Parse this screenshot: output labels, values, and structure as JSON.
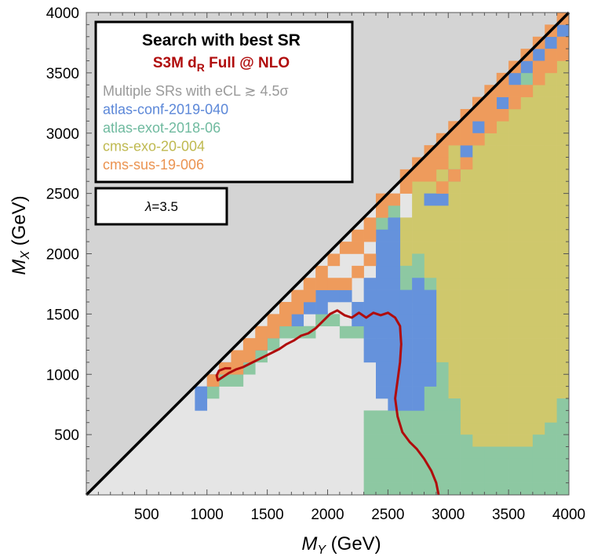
{
  "chart_data": {
    "type": "heatmap",
    "title": "Search with best SR",
    "subtitle": "S3M d_R Full @ NLO",
    "subtitle_parts": {
      "main": "S3M d",
      "sub": "R",
      "rest": " Full @ NLO"
    },
    "param_box": {
      "symbol": "λ",
      "text": "=3.5"
    },
    "xlabel": {
      "symbol": "M",
      "sub": "Y",
      "unit": " (GeV)"
    },
    "ylabel": {
      "symbol": "M",
      "sub": "X",
      "unit": " (GeV)"
    },
    "xlim": [
      0,
      4000
    ],
    "ylim": [
      0,
      4000
    ],
    "xticks": [
      "500",
      "1000",
      "1500",
      "2000",
      "2500",
      "3000",
      "3500",
      "4000"
    ],
    "yticks": [
      "500",
      "1000",
      "1500",
      "2000",
      "2500",
      "3000",
      "3500",
      "4000"
    ],
    "cell_size_gev": 100,
    "colors": {
      "kinematically_excluded": "#d4d4d4",
      "no_sensitivity": "#e5e5e5",
      "multiple": "#9f9f9f",
      "atlas_conf_2019_040": "#6592dc",
      "atlas_exot_2018_06": "#8dc8a2",
      "cms_exo_20_004": "#cfc86c",
      "cms_sus_19_006": "#ee9b5c",
      "contour": "#b00c0c"
    },
    "legend": [
      {
        "label": "Multiple SRs with eCL ≳ 4.5σ",
        "color": "#9a9a9a"
      },
      {
        "label": "atlas-conf-2019-040",
        "color": "#5b87d8"
      },
      {
        "label": "atlas-exot-2018-06",
        "color": "#6fba9f"
      },
      {
        "label": "cms-exo-20-004",
        "color": "#bfb950"
      },
      {
        "label": "cms-sus-19-006",
        "color": "#eb9350"
      }
    ],
    "contour_curve": {
      "label": "S3M d_R Full @ NLO",
      "x": [
        2920,
        2900,
        2860,
        2800,
        2740,
        2680,
        2620,
        2580,
        2560,
        2580,
        2600,
        2610,
        2600,
        2560,
        2500,
        2440,
        2380,
        2320,
        2260,
        2200,
        2140,
        2080,
        2020,
        1960,
        1900,
        1840,
        1780,
        1720,
        1660,
        1600,
        1540,
        1480,
        1420,
        1360,
        1300,
        1240,
        1180,
        1120,
        1090,
        1080,
        1100,
        1150,
        1200
      ],
      "y": [
        0,
        100,
        200,
        300,
        380,
        440,
        520,
        650,
        800,
        950,
        1100,
        1250,
        1400,
        1470,
        1510,
        1490,
        1510,
        1470,
        1510,
        1470,
        1490,
        1530,
        1500,
        1440,
        1380,
        1340,
        1320,
        1280,
        1250,
        1210,
        1180,
        1150,
        1120,
        1090,
        1060,
        1040,
        1010,
        970,
        950,
        990,
        1030,
        1050,
        1050
      ]
    },
    "cells": {
      "blue": [
        [
          900,
          700
        ],
        [
          900,
          800
        ],
        [
          1000,
          900
        ],
        [
          1100,
          1000
        ],
        [
          1200,
          1000
        ],
        [
          1300,
          1100
        ],
        [
          1400,
          1200
        ],
        [
          1500,
          1300
        ],
        [
          1600,
          1400
        ],
        [
          1700,
          1400
        ],
        [
          1800,
          1500
        ],
        [
          1900,
          1500
        ],
        [
          1900,
          1600
        ],
        [
          2000,
          1600
        ],
        [
          2100,
          1600
        ],
        [
          2200,
          1400
        ],
        [
          2200,
          1500
        ],
        [
          2300,
          1300
        ],
        [
          2300,
          1400
        ],
        [
          2300,
          1500
        ],
        [
          2300,
          1600
        ],
        [
          2300,
          1700
        ],
        [
          2400,
          1300
        ],
        [
          2400,
          1400
        ],
        [
          2400,
          1500
        ],
        [
          2400,
          1600
        ],
        [
          2400,
          1700
        ],
        [
          2400,
          1800
        ],
        [
          2400,
          1900
        ],
        [
          2400,
          2000
        ],
        [
          2400,
          2100
        ],
        [
          2500,
          1200
        ],
        [
          2500,
          1300
        ],
        [
          2500,
          1400
        ],
        [
          2500,
          1500
        ],
        [
          2500,
          1600
        ],
        [
          2500,
          1700
        ],
        [
          2500,
          1800
        ],
        [
          2500,
          1900
        ],
        [
          2500,
          2000
        ],
        [
          2500,
          2100
        ],
        [
          2500,
          2200
        ],
        [
          2600,
          1100
        ],
        [
          2600,
          1200
        ],
        [
          2600,
          1300
        ],
        [
          2600,
          1400
        ],
        [
          2600,
          1500
        ],
        [
          2600,
          1600
        ],
        [
          2700,
          1000
        ],
        [
          2700,
          1100
        ],
        [
          2700,
          1200
        ],
        [
          2700,
          1300
        ],
        [
          2700,
          1400
        ],
        [
          2700,
          1500
        ],
        [
          2700,
          1600
        ],
        [
          2800,
          1000
        ],
        [
          2800,
          1100
        ],
        [
          2800,
          1200
        ],
        [
          2800,
          1300
        ],
        [
          2800,
          1400
        ],
        [
          2800,
          1500
        ],
        [
          2800,
          1600
        ],
        [
          2800,
          2400
        ],
        [
          2900,
          2400
        ],
        [
          3000,
          2600
        ],
        [
          3100,
          2800
        ],
        [
          3200,
          3000
        ],
        [
          3300,
          3100
        ],
        [
          3400,
          3200
        ],
        [
          3500,
          3400
        ],
        [
          3600,
          3500
        ],
        [
          3700,
          3600
        ],
        [
          3800,
          3700
        ],
        [
          3900,
          3800
        ],
        [
          2300,
          1200
        ],
        [
          2300,
          1100
        ],
        [
          2400,
          1100
        ],
        [
          2400,
          1200
        ],
        [
          2500,
          1100
        ],
        [
          2600,
          1000
        ],
        [
          2600,
          900
        ],
        [
          2700,
          900
        ],
        [
          2400,
          1000
        ],
        [
          2500,
          1000
        ],
        [
          2500,
          900
        ],
        [
          2600,
          800
        ],
        [
          2700,
          800
        ],
        [
          2400,
          900
        ],
        [
          2400,
          800
        ],
        [
          2500,
          800
        ],
        [
          2500,
          700
        ],
        [
          2600,
          700
        ],
        [
          2700,
          700
        ],
        [
          2800,
          900
        ],
        [
          2700,
          1700
        ]
      ],
      "green": [
        [
          1000,
          800
        ],
        [
          1100,
          900
        ],
        [
          1200,
          900
        ],
        [
          1300,
          1000
        ],
        [
          1400,
          1100
        ],
        [
          1500,
          1200
        ],
        [
          1600,
          1300
        ],
        [
          1700,
          1300
        ],
        [
          1800,
          1300
        ],
        [
          1900,
          1400
        ],
        [
          2000,
          1400
        ],
        [
          2100,
          1300
        ],
        [
          2200,
          1300
        ],
        [
          2400,
          2200
        ],
        [
          2500,
          2300
        ],
        [
          2600,
          1700
        ],
        [
          2600,
          1800
        ],
        [
          2700,
          1800
        ],
        [
          2700,
          1900
        ],
        [
          2800,
          1700
        ],
        [
          3600,
          3400
        ],
        [
          3700,
          3500
        ],
        [
          2900,
          1000
        ],
        [
          2900,
          900
        ],
        [
          2900,
          800
        ],
        [
          2900,
          700
        ],
        [
          2900,
          600
        ],
        [
          2900,
          500
        ],
        [
          2900,
          400
        ],
        [
          2900,
          300
        ],
        [
          2900,
          200
        ],
        [
          2900,
          100
        ],
        [
          2900,
          0
        ],
        [
          3000,
          700
        ],
        [
          3000,
          600
        ],
        [
          3000,
          500
        ],
        [
          3000,
          400
        ],
        [
          3000,
          300
        ],
        [
          3000,
          200
        ],
        [
          3000,
          100
        ],
        [
          3000,
          0
        ],
        [
          3100,
          400
        ],
        [
          3100,
          300
        ],
        [
          3100,
          200
        ],
        [
          3100,
          100
        ],
        [
          3100,
          0
        ],
        [
          3200,
          300
        ],
        [
          3200,
          200
        ],
        [
          3200,
          100
        ],
        [
          3200,
          0
        ],
        [
          3300,
          300
        ],
        [
          3300,
          200
        ],
        [
          3300,
          100
        ],
        [
          3300,
          0
        ],
        [
          3400,
          300
        ],
        [
          3400,
          200
        ],
        [
          3400,
          100
        ],
        [
          3400,
          0
        ],
        [
          3500,
          300
        ],
        [
          3500,
          200
        ],
        [
          3500,
          100
        ],
        [
          3500,
          0
        ],
        [
          3600,
          300
        ],
        [
          3600,
          200
        ],
        [
          3600,
          100
        ],
        [
          3600,
          0
        ],
        [
          3700,
          400
        ],
        [
          3700,
          300
        ],
        [
          3700,
          200
        ],
        [
          3700,
          100
        ],
        [
          3700,
          0
        ],
        [
          3800,
          500
        ],
        [
          3800,
          400
        ],
        [
          3800,
          300
        ],
        [
          3800,
          200
        ],
        [
          3800,
          100
        ],
        [
          3800,
          0
        ],
        [
          3900,
          700
        ],
        [
          3900,
          600
        ],
        [
          3900,
          500
        ],
        [
          3900,
          400
        ],
        [
          3900,
          300
        ],
        [
          3900,
          200
        ],
        [
          3900,
          100
        ],
        [
          3900,
          0
        ],
        [
          2400,
          600
        ],
        [
          2400,
          500
        ],
        [
          2400,
          400
        ],
        [
          2400,
          300
        ],
        [
          2400,
          200
        ],
        [
          2400,
          100
        ],
        [
          2400,
          0
        ],
        [
          2500,
          600
        ],
        [
          2500,
          500
        ],
        [
          2500,
          400
        ],
        [
          2500,
          300
        ],
        [
          2500,
          200
        ],
        [
          2500,
          100
        ],
        [
          2500,
          0
        ],
        [
          2600,
          600
        ],
        [
          2600,
          500
        ],
        [
          2600,
          400
        ],
        [
          2600,
          300
        ],
        [
          2600,
          200
        ],
        [
          2600,
          100
        ],
        [
          2600,
          0
        ],
        [
          2700,
          600
        ],
        [
          2700,
          500
        ],
        [
          2700,
          400
        ],
        [
          2700,
          300
        ],
        [
          2700,
          200
        ],
        [
          2700,
          100
        ],
        [
          2700,
          0
        ],
        [
          2800,
          800
        ],
        [
          2800,
          700
        ],
        [
          2800,
          600
        ],
        [
          2800,
          500
        ],
        [
          2800,
          400
        ],
        [
          2800,
          300
        ],
        [
          2800,
          200
        ],
        [
          2800,
          100
        ],
        [
          2800,
          0
        ],
        [
          2300,
          600
        ],
        [
          2300,
          500
        ],
        [
          2300,
          400
        ],
        [
          2300,
          300
        ],
        [
          2300,
          200
        ],
        [
          2300,
          100
        ],
        [
          2300,
          0
        ]
      ],
      "orange": [
        [
          1000,
          900
        ],
        [
          1100,
          1000
        ],
        [
          1200,
          1100
        ],
        [
          1300,
          1200
        ],
        [
          1400,
          1300
        ],
        [
          1500,
          1400
        ],
        [
          1600,
          1500
        ],
        [
          1700,
          1600
        ],
        [
          1800,
          1700
        ],
        [
          1900,
          1800
        ],
        [
          2000,
          1900
        ],
        [
          2100,
          2000
        ],
        [
          2200,
          2100
        ],
        [
          2300,
          2200
        ],
        [
          2400,
          2300
        ],
        [
          2300,
          1900
        ],
        [
          2200,
          1800
        ],
        [
          2100,
          1700
        ],
        [
          2000,
          1700
        ],
        [
          1900,
          1700
        ],
        [
          1800,
          1600
        ],
        [
          1700,
          1500
        ],
        [
          1600,
          1400
        ],
        [
          1500,
          1300
        ],
        [
          1400,
          1200
        ],
        [
          1300,
          1100
        ],
        [
          1200,
          1000
        ],
        [
          2200,
          2000
        ],
        [
          2300,
          2100
        ],
        [
          2400,
          2400
        ],
        [
          2500,
          2400
        ],
        [
          2600,
          2600
        ],
        [
          2700,
          2600
        ],
        [
          2700,
          2700
        ],
        [
          2800,
          2700
        ],
        [
          2800,
          2800
        ],
        [
          2900,
          2700
        ],
        [
          2900,
          2800
        ],
        [
          2900,
          2900
        ],
        [
          3000,
          2900
        ],
        [
          3000,
          3000
        ],
        [
          3100,
          3000
        ],
        [
          3100,
          3100
        ],
        [
          3200,
          3100
        ],
        [
          3200,
          3200
        ],
        [
          3300,
          3200
        ],
        [
          3300,
          3300
        ],
        [
          3400,
          3300
        ],
        [
          3400,
          3400
        ],
        [
          3500,
          3500
        ],
        [
          3600,
          3600
        ],
        [
          3700,
          3700
        ],
        [
          3800,
          3800
        ],
        [
          3900,
          3900
        ],
        [
          3900,
          3700
        ],
        [
          3800,
          3600
        ],
        [
          3700,
          3400
        ],
        [
          3600,
          3300
        ],
        [
          3500,
          3200
        ],
        [
          3400,
          3100
        ],
        [
          3300,
          3000
        ],
        [
          3200,
          2900
        ],
        [
          3100,
          2700
        ],
        [
          3000,
          2600
        ],
        [
          2900,
          2500
        ],
        [
          2600,
          2500
        ],
        [
          2800,
          2600
        ],
        [
          3100,
          2900
        ],
        [
          3300,
          3100
        ],
        [
          3500,
          3300
        ],
        [
          3700,
          3500
        ],
        [
          3800,
          3500
        ],
        [
          3900,
          3600
        ]
      ]
    }
  }
}
